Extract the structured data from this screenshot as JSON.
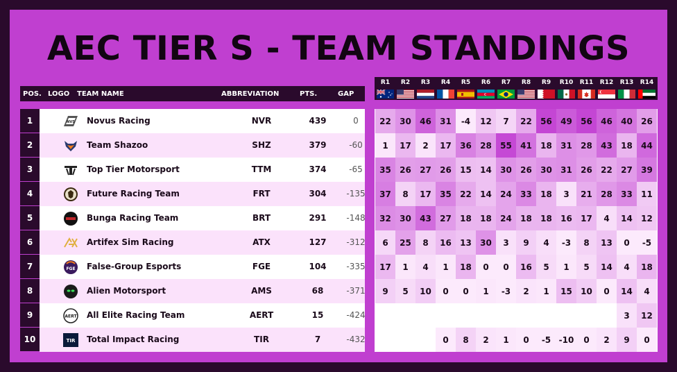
{
  "title": "AEC TIER S - TEAM STANDINGS",
  "headers": {
    "pos": "POS.",
    "logo": "LOGO",
    "team_name": "TEAM NAME",
    "abbreviation": "ABBREVIATION",
    "pts": "PTS.",
    "gap": "GAP"
  },
  "rounds": [
    {
      "label": "R1",
      "flag": "australia"
    },
    {
      "label": "R2",
      "flag": "usa"
    },
    {
      "label": "R3",
      "flag": "netherlands"
    },
    {
      "label": "R4",
      "flag": "france"
    },
    {
      "label": "R5",
      "flag": "spain"
    },
    {
      "label": "R6",
      "flag": "azerbaijan"
    },
    {
      "label": "R7",
      "flag": "brazil"
    },
    {
      "label": "R8",
      "flag": "usa"
    },
    {
      "label": "R9",
      "flag": "bahrain"
    },
    {
      "label": "R10",
      "flag": "mexico"
    },
    {
      "label": "R11",
      "flag": "canada"
    },
    {
      "label": "R12",
      "flag": "singapore"
    },
    {
      "label": "R13",
      "flag": "italy"
    },
    {
      "label": "R14",
      "flag": "uae"
    }
  ],
  "teams": [
    {
      "pos": "1",
      "name": "Novus Racing",
      "abbr": "NVR",
      "pts": "439",
      "gap": "0",
      "logo_icon": "novus-logo-icon",
      "results": [
        "22",
        "30",
        "46",
        "31",
        "-4",
        "12",
        "7",
        "22",
        "56",
        "49",
        "56",
        "46",
        "40",
        "26"
      ]
    },
    {
      "pos": "2",
      "name": "Team Shazoo",
      "abbr": "SHZ",
      "pts": "379",
      "gap": "-60",
      "logo_icon": "shazoo-logo-icon",
      "results": [
        "1",
        "17",
        "2",
        "17",
        "36",
        "28",
        "55",
        "41",
        "18",
        "31",
        "28",
        "43",
        "18",
        "44"
      ]
    },
    {
      "pos": "3",
      "name": "Top Tier Motorsport",
      "abbr": "TTM",
      "pts": "374",
      "gap": "-65",
      "logo_icon": "top-tier-logo-icon",
      "results": [
        "35",
        "26",
        "27",
        "26",
        "15",
        "14",
        "30",
        "26",
        "30",
        "31",
        "26",
        "22",
        "27",
        "39"
      ]
    },
    {
      "pos": "4",
      "name": "Future Racing Team",
      "abbr": "FRT",
      "pts": "304",
      "gap": "-135",
      "logo_icon": "future-racing-logo-icon",
      "results": [
        "37",
        "8",
        "17",
        "35",
        "22",
        "14",
        "24",
        "33",
        "18",
        "3",
        "21",
        "28",
        "33",
        "11"
      ]
    },
    {
      "pos": "5",
      "name": "Bunga Racing Team",
      "abbr": "BRT",
      "pts": "291",
      "gap": "-148",
      "logo_icon": "bunga-logo-icon",
      "results": [
        "32",
        "30",
        "43",
        "27",
        "18",
        "18",
        "24",
        "18",
        "18",
        "16",
        "17",
        "4",
        "14",
        "12"
      ]
    },
    {
      "pos": "6",
      "name": "Artifex Sim Racing",
      "abbr": "ATX",
      "pts": "127",
      "gap": "-312",
      "logo_icon": "artifex-logo-icon",
      "results": [
        "6",
        "25",
        "8",
        "16",
        "13",
        "30",
        "3",
        "9",
        "4",
        "-3",
        "8",
        "13",
        "0",
        "-5"
      ]
    },
    {
      "pos": "7",
      "name": "False-Group Esports",
      "abbr": "FGE",
      "pts": "104",
      "gap": "-335",
      "logo_icon": "false-group-logo-icon",
      "results": [
        "17",
        "1",
        "4",
        "1",
        "18",
        "0",
        "0",
        "16",
        "5",
        "1",
        "5",
        "14",
        "4",
        "18"
      ]
    },
    {
      "pos": "8",
      "name": "Alien Motorsport",
      "abbr": "AMS",
      "pts": "68",
      "gap": "-371",
      "logo_icon": "alien-logo-icon",
      "results": [
        "9",
        "5",
        "10",
        "0",
        "0",
        "1",
        "-3",
        "2",
        "1",
        "15",
        "10",
        "0",
        "14",
        "4"
      ]
    },
    {
      "pos": "9",
      "name": "All Elite Racing Team",
      "abbr": "AERT",
      "pts": "15",
      "gap": "-424",
      "logo_icon": "aert-logo-icon",
      "results": [
        "",
        "",
        "",
        "",
        "",
        "",
        "",
        "",
        "",
        "",
        "",
        "",
        "3",
        "12"
      ]
    },
    {
      "pos": "10",
      "name": "Total Impact Racing",
      "abbr": "TIR",
      "pts": "7",
      "gap": "-432",
      "logo_icon": "tir-logo-icon",
      "results": [
        "",
        "",
        "",
        "0",
        "8",
        "2",
        "1",
        "0",
        "-5",
        "-10",
        "0",
        "2",
        "9",
        "0"
      ]
    }
  ],
  "colors": {
    "background": "#c03fd0",
    "dark": "#2a0a2c",
    "row_light": "#ffffff",
    "row_tint": "#fbe2fb",
    "heat_high": "#c03fd0",
    "heat_low": "#fbe8fb"
  }
}
